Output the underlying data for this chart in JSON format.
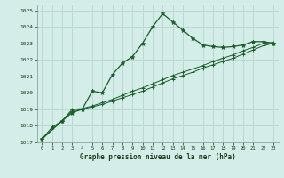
{
  "title": "Graphe pression niveau de la mer (hPa)",
  "bg_color": "#d4ede8",
  "grid_color": "#b8d8d0",
  "line_color": "#1a5c2a",
  "xlim": [
    -0.5,
    23.5
  ],
  "ylim": [
    1017,
    1025.3
  ],
  "yticks": [
    1017,
    1018,
    1019,
    1020,
    1021,
    1022,
    1023,
    1024,
    1025
  ],
  "xticks": [
    0,
    1,
    2,
    3,
    4,
    5,
    6,
    7,
    8,
    9,
    10,
    11,
    12,
    13,
    14,
    15,
    16,
    17,
    18,
    19,
    20,
    21,
    22,
    23
  ],
  "series1_x": [
    0,
    1,
    2,
    3,
    4,
    5,
    6,
    7,
    8,
    9,
    10,
    11,
    12,
    13,
    14,
    15,
    16,
    17,
    18,
    19,
    20,
    21,
    22,
    23
  ],
  "series1_y": [
    1017.2,
    1017.9,
    1018.3,
    1018.8,
    1019.0,
    1020.1,
    1020.0,
    1021.1,
    1021.8,
    1022.2,
    1023.0,
    1024.0,
    1024.8,
    1024.3,
    1023.8,
    1023.3,
    1022.9,
    1022.8,
    1022.75,
    1022.8,
    1022.9,
    1023.1,
    1023.1,
    1023.0
  ],
  "series2_x": [
    0,
    2,
    3,
    4,
    5,
    6,
    7,
    8,
    9,
    10,
    11,
    12,
    13,
    14,
    15,
    16,
    17,
    18,
    19,
    20,
    21,
    22,
    23
  ],
  "series2_y": [
    1017.2,
    1018.3,
    1018.9,
    1019.0,
    1019.15,
    1019.3,
    1019.5,
    1019.7,
    1019.9,
    1020.1,
    1020.35,
    1020.6,
    1020.85,
    1021.05,
    1021.25,
    1021.5,
    1021.7,
    1021.9,
    1022.1,
    1022.35,
    1022.6,
    1022.85,
    1023.0
  ],
  "series3_x": [
    0,
    2,
    3,
    4,
    5,
    6,
    7,
    8,
    9,
    10,
    11,
    12,
    13,
    14,
    15,
    16,
    17,
    18,
    19,
    20,
    21,
    22,
    23
  ],
  "series3_y": [
    1017.2,
    1018.3,
    1019.0,
    1019.05,
    1019.2,
    1019.4,
    1019.6,
    1019.85,
    1020.1,
    1020.3,
    1020.55,
    1020.8,
    1021.05,
    1021.25,
    1021.45,
    1021.65,
    1021.9,
    1022.1,
    1022.3,
    1022.55,
    1022.75,
    1023.0,
    1023.05
  ]
}
